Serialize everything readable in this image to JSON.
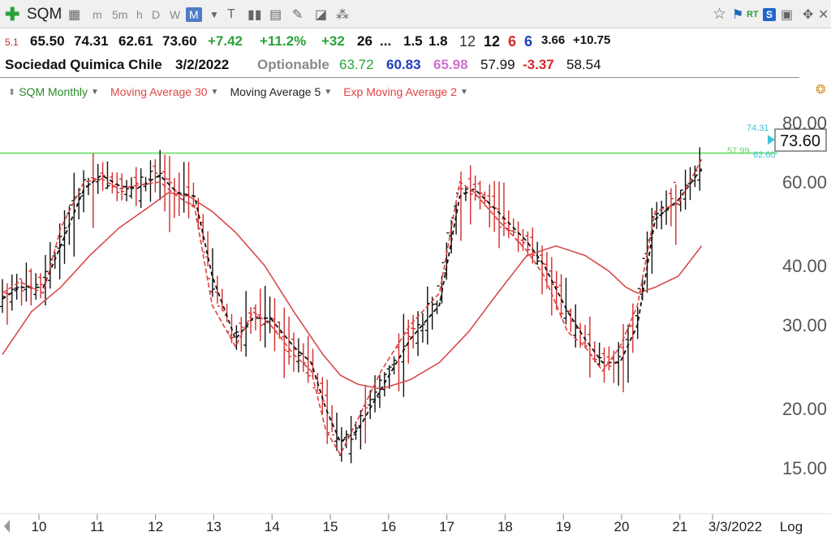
{
  "toolbar": {
    "symbol": "SQM",
    "timeframes": [
      "m",
      "5m",
      "h",
      "D",
      "W",
      "M"
    ],
    "active_timeframe": "M",
    "rt_label": "RT",
    "s_label": "S"
  },
  "quote": {
    "row1": {
      "version": "5.1",
      "open": "65.50",
      "high": "74.31",
      "low": "62.61",
      "close": "73.60",
      "change": "+7.42",
      "change_pct": "+11.2%",
      "v1": "+32",
      "v2": "26",
      "v3": "...",
      "v4": "1.5",
      "v5": "1.8",
      "v6": "12",
      "v7": "12",
      "v8": "6",
      "v9": "6",
      "v10": "3.66",
      "v11": "+10.75"
    },
    "row2": {
      "name": "Sociedad Quimica Chile",
      "date": "3/2/2022",
      "optionable": "Optionable",
      "n1": "63.72",
      "n2": "60.83",
      "n3": "65.98",
      "n4": "57.99",
      "n5": "-3.37",
      "n6": "58.54"
    }
  },
  "legend": {
    "price": "SQM Monthly",
    "ma30": "Moving Average 30",
    "ma5": "Moving Average 5",
    "ema2": "Exp Moving Average 2"
  },
  "colors": {
    "price_up": "#111111",
    "price_down": "#d42a2a",
    "ma30": "#d94a4a",
    "ma5": "#111111",
    "ema2": "#e24040",
    "hline": "#7ee37e",
    "axis_text": "#555555",
    "tick_text": "#3a6b2a"
  },
  "chart_data": {
    "type": "line",
    "title": "",
    "scale": "log",
    "ylim": [
      12.5,
      85
    ],
    "y_ticks": [
      15,
      20,
      30,
      40,
      60,
      80
    ],
    "y_tick_labels": [
      "15.00",
      "20.00",
      "30.00",
      "40.00",
      "60.00",
      "80.00"
    ],
    "x_ticks": [
      "10",
      "11",
      "12",
      "13",
      "14",
      "15",
      "16",
      "17",
      "18",
      "19",
      "20",
      "21",
      "3/3/2022"
    ],
    "axis_mode": "Log",
    "last_price": 73.6,
    "last_price_label": "73.60",
    "price_labels": {
      "high": "74.31",
      "mid": "57.99",
      "low": "62.60"
    },
    "horizontal_line": 69,
    "series": [
      {
        "name": "Moving Average 30",
        "x": [
          10.0,
          10.5,
          11.0,
          11.5,
          12.0,
          12.5,
          12.85,
          13.2,
          13.6,
          14.0,
          14.5,
          15.0,
          15.5,
          15.8,
          16.1,
          16.5,
          17.0,
          17.5,
          18.0,
          18.5,
          19.0,
          19.5,
          20.0,
          20.4,
          20.7,
          20.9,
          21.2,
          21.6,
          22.0
        ],
        "y": [
          26,
          32,
          36,
          42,
          48,
          53,
          57,
          56,
          52,
          47,
          40,
          32,
          26,
          23.5,
          22.5,
          22,
          23,
          25,
          29,
          35,
          42,
          44,
          42,
          39,
          36,
          35,
          36,
          38,
          44
        ]
      },
      {
        "name": "Moving Average 5",
        "x": [
          10.0,
          10.3,
          10.7,
          11.0,
          11.4,
          11.7,
          12.0,
          12.3,
          12.7,
          13.0,
          13.3,
          13.6,
          14.0,
          14.3,
          14.6,
          15.0,
          15.3,
          15.55,
          15.8,
          16.1,
          16.5,
          17.0,
          17.5,
          17.85,
          18.1,
          18.5,
          19.0,
          19.3,
          19.7,
          20.0,
          20.3,
          20.6,
          20.9,
          21.2,
          21.6,
          22.0
        ],
        "y": [
          34,
          36,
          36,
          44,
          58,
          62,
          59,
          58,
          62,
          57,
          56,
          38,
          28,
          31,
          31,
          27,
          25,
          20,
          17,
          18,
          22,
          28,
          33,
          56,
          58,
          52,
          45,
          40,
          32,
          28,
          25,
          25,
          30,
          50,
          55,
          64
        ]
      },
      {
        "name": "Exp Moving Average 2",
        "x": [
          10.0,
          10.3,
          10.7,
          11.0,
          11.4,
          11.7,
          12.0,
          12.3,
          12.7,
          13.0,
          13.3,
          13.6,
          14.0,
          14.3,
          14.6,
          15.0,
          15.3,
          15.55,
          15.8,
          16.1,
          16.5,
          17.0,
          17.5,
          17.85,
          18.1,
          18.5,
          19.0,
          19.3,
          19.7,
          20.0,
          20.3,
          20.6,
          20.9,
          21.2,
          21.6,
          22.0
        ],
        "y": [
          35,
          37,
          35,
          48,
          60,
          61,
          58,
          59,
          60,
          56,
          53,
          33,
          27,
          32,
          30,
          26,
          24,
          18,
          16,
          19,
          24,
          30,
          35,
          60,
          57,
          50,
          43,
          38,
          29,
          27,
          24,
          27,
          33,
          52,
          54,
          67
        ]
      }
    ]
  }
}
